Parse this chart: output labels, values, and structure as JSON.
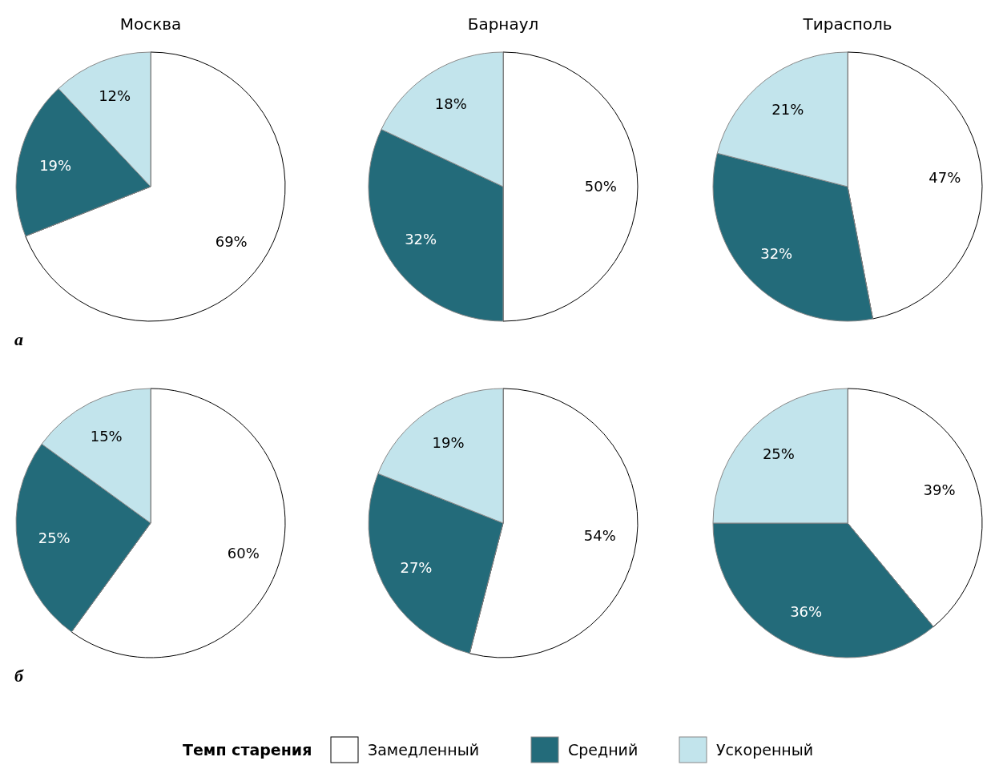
{
  "chart_data": [
    {
      "type": "pie",
      "title": "Москва",
      "categories": [
        "Замедленный",
        "Средний",
        "Ускоренный"
      ],
      "values": [
        69,
        19,
        12
      ],
      "value_labels": [
        "69%",
        "19%",
        "12%"
      ],
      "colors": [
        "#ffffff",
        "#236b7a",
        "#c2e4ec"
      ],
      "annotations": [
        "а"
      ],
      "legend": "bottom",
      "legend_title": "Темп старения"
    },
    {
      "type": "pie",
      "title": "Барнаул",
      "categories": [
        null,
        null,
        null
      ],
      "values": [
        50,
        32,
        18
      ],
      "value_labels": [
        "50%",
        "32%",
        "18%"
      ],
      "colors": [
        "#ffffff",
        "#236b7a",
        "#c2e4ec"
      ]
    },
    {
      "type": "pie",
      "title": "Тирасполь",
      "categories": [
        null,
        null,
        null
      ],
      "values": [
        47,
        32,
        21
      ],
      "value_labels": [
        "47%",
        "32%",
        "21%"
      ],
      "colors": [
        "#ffffff",
        "#236b7a",
        "#c2e4ec"
      ]
    },
    {
      "type": "pie",
      "categories": [
        null,
        null,
        null
      ],
      "values": [
        60,
        25,
        15
      ],
      "value_labels": [
        "60%",
        "25%",
        "15%"
      ],
      "colors": [
        "#ffffff",
        "#236b7a",
        "#c2e4ec"
      ],
      "annotations": [
        "б"
      ]
    },
    {
      "type": "pie",
      "categories": [
        null,
        null,
        null
      ],
      "values": [
        54,
        27,
        19
      ],
      "value_labels": [
        "54%",
        "27%",
        "19%"
      ],
      "colors": [
        "#ffffff",
        "#236b7a",
        "#c2e4ec"
      ]
    },
    {
      "type": "pie",
      "categories": [
        null,
        null,
        null
      ],
      "values": [
        39,
        36,
        25
      ],
      "value_labels": [
        "39%",
        "36%",
        "25%"
      ],
      "colors": [
        "#ffffff",
        "#236b7a",
        "#c2e4ec"
      ]
    }
  ]
}
